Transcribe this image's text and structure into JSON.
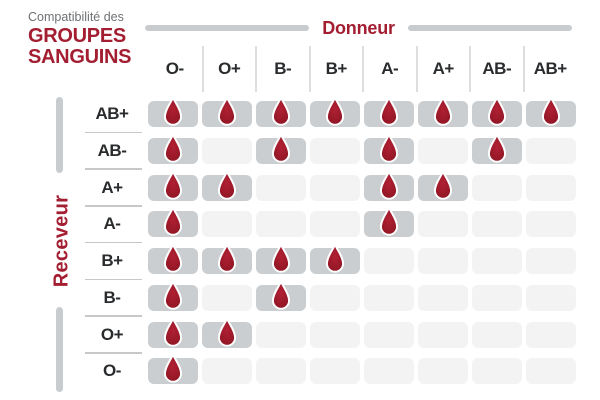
{
  "title": {
    "eyebrow": "Compatibilité des",
    "line1": "GROUPES",
    "line2": "SANGUINS"
  },
  "axes": {
    "donor_label": "Donneur",
    "receiver_label": "Receveur"
  },
  "icons": {
    "compatible_marker": "blood-drop-icon"
  },
  "colors": {
    "accent_red": "#a41e31",
    "drop_red": "#a81c2c",
    "drop_red_dark": "#8e1624",
    "cell_filled": "#cbced0",
    "cell_empty": "#f3f3f4",
    "text_dark": "#292b2d",
    "text_gray": "#6e7174",
    "line_gray": "#c9cccf"
  },
  "chart_data": {
    "type": "heatmap",
    "title": "Compatibilité des GROUPES SANGUINS",
    "xlabel": "Donneur",
    "ylabel": "Receveur",
    "columns": [
      "O-",
      "O+",
      "B-",
      "B+",
      "A-",
      "A+",
      "AB-",
      "AB+"
    ],
    "rows": [
      "AB+",
      "AB-",
      "A+",
      "A-",
      "B+",
      "B-",
      "O+",
      "O-"
    ],
    "matrix": [
      [
        1,
        1,
        1,
        1,
        1,
        1,
        1,
        1
      ],
      [
        1,
        0,
        1,
        0,
        1,
        0,
        1,
        0
      ],
      [
        1,
        1,
        0,
        0,
        1,
        1,
        0,
        0
      ],
      [
        1,
        0,
        0,
        0,
        1,
        0,
        0,
        0
      ],
      [
        1,
        1,
        1,
        1,
        0,
        0,
        0,
        0
      ],
      [
        1,
        0,
        1,
        0,
        0,
        0,
        0,
        0
      ],
      [
        1,
        1,
        0,
        0,
        0,
        0,
        0,
        0
      ],
      [
        1,
        0,
        0,
        0,
        0,
        0,
        0,
        0
      ]
    ],
    "cell_values": {
      "1": "compatible — blood drop shown",
      "0": "incompatible — empty cell"
    },
    "legend_position": "none",
    "grid": "off"
  }
}
